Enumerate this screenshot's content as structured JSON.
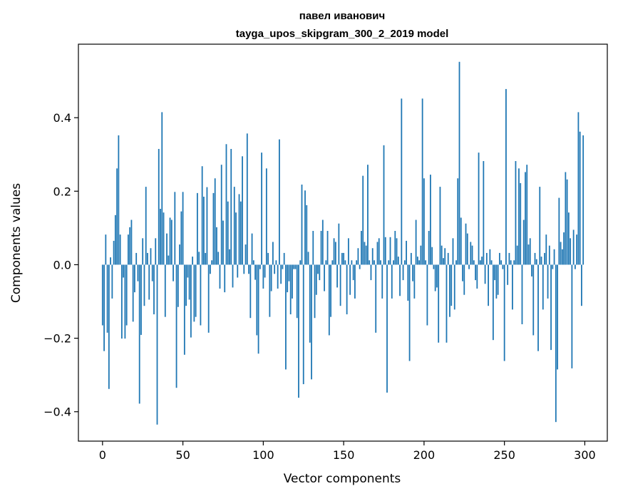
{
  "chart_data": {
    "type": "bar",
    "title_lines": [
      "павел иванович",
      "tayga_upos_skipgram_300_2_2019 model"
    ],
    "xlabel": "Vector components",
    "ylabel": "Components values",
    "xlim": [
      -15,
      314
    ],
    "ylim": [
      -0.48,
      0.6
    ],
    "xticks": [
      0,
      50,
      100,
      150,
      200,
      250,
      300
    ],
    "xtick_labels": [
      "0",
      "50",
      "100",
      "150",
      "200",
      "250",
      "300"
    ],
    "yticks": [
      -0.4,
      -0.2,
      0.0,
      0.2,
      0.4
    ],
    "ytick_labels": [
      "−0.4",
      "−0.2",
      "0.0",
      "0.2",
      "0.4"
    ],
    "grid": false,
    "bar_color": "#1f77b4",
    "values": [
      -0.165,
      -0.235,
      0.082,
      -0.185,
      -0.338,
      0.02,
      -0.092,
      0.065,
      0.135,
      0.262,
      0.352,
      0.082,
      -0.201,
      -0.035,
      -0.201,
      -0.165,
      0.082,
      0.102,
      0.122,
      -0.155,
      -0.075,
      0.032,
      -0.045,
      -0.378,
      -0.191,
      0.072,
      -0.112,
      0.212,
      0.032,
      -0.095,
      0.045,
      -0.045,
      -0.135,
      0.072,
      -0.435,
      0.315,
      0.152,
      0.415,
      0.142,
      -0.142,
      0.085,
      0.025,
      0.128,
      0.122,
      -0.045,
      0.198,
      -0.335,
      -0.115,
      0.055,
      0.145,
      0.198,
      -0.245,
      -0.112,
      -0.035,
      -0.095,
      -0.198,
      0.022,
      -0.155,
      -0.142,
      0.195,
      0.035,
      -0.165,
      0.268,
      0.185,
      0.032,
      0.211,
      -0.185,
      -0.025,
      0.012,
      0.195,
      0.235,
      0.102,
      0.035,
      -0.065,
      0.272,
      0.12,
      -0.075,
      0.328,
      0.172,
      0.042,
      0.315,
      -0.062,
      0.212,
      0.142,
      -0.035,
      0.192,
      0.172,
      0.295,
      -0.025,
      0.055,
      0.357,
      -0.025,
      -0.145,
      0.085,
      0.012,
      -0.041,
      -0.192,
      -0.242,
      -0.012,
      0.305,
      -0.065,
      -0.035,
      0.262,
      0.032,
      -0.142,
      -0.072,
      0.062,
      -0.025,
      0.012,
      -0.065,
      0.341,
      -0.052,
      -0.012,
      0.032,
      -0.285,
      -0.075,
      -0.045,
      -0.135,
      -0.092,
      -0.012,
      -0.012,
      -0.145,
      -0.362,
      0.012,
      0.218,
      -0.325,
      0.202,
      0.162,
      0.035,
      -0.212,
      -0.312,
      0.092,
      -0.145,
      -0.082,
      -0.025,
      -0.042,
      0.092,
      0.122,
      -0.072,
      0.012,
      0.092,
      -0.192,
      -0.142,
      0.012,
      0.072,
      0.062,
      -0.062,
      0.112,
      -0.112,
      0.032,
      0.032,
      0.012,
      -0.135,
      0.072,
      -0.082,
      0.012,
      -0.042,
      -0.092,
      0.012,
      0.045,
      -0.012,
      0.092,
      0.242,
      0.062,
      0.052,
      0.272,
      0.012,
      -0.042,
      0.045,
      0.012,
      -0.185,
      0.062,
      0.072,
      0.012,
      -0.092,
      0.325,
      0.075,
      -0.348,
      0.012,
      0.075,
      -0.092,
      0.012,
      0.092,
      0.072,
      0.022,
      -0.085,
      0.452,
      -0.042,
      0.012,
      0.065,
      -0.098,
      -0.262,
      0.032,
      -0.045,
      -0.092,
      0.122,
      0.022,
      0.012,
      0.052,
      0.452,
      0.235,
      0.012,
      -0.165,
      0.092,
      0.245,
      0.048,
      -0.012,
      -0.072,
      -0.062,
      -0.212,
      0.212,
      0.052,
      0.018,
      0.045,
      -0.212,
      0.032,
      -0.142,
      -0.112,
      0.072,
      -0.122,
      0.012,
      0.235,
      0.552,
      0.128,
      -0.045,
      -0.082,
      0.112,
      0.085,
      -0.012,
      0.062,
      0.052,
      0.012,
      -0.042,
      -0.065,
      0.305,
      0.012,
      0.022,
      0.282,
      -0.052,
      0.032,
      -0.112,
      0.042,
      0.012,
      -0.205,
      -0.042,
      -0.092,
      -0.082,
      0.032,
      0.012,
      -0.012,
      -0.262,
      0.478,
      -0.055,
      0.032,
      0.012,
      -0.122,
      0.012,
      0.282,
      0.052,
      0.262,
      0.222,
      -0.162,
      0.122,
      0.252,
      0.272,
      0.055,
      0.072,
      -0.032,
      -0.192,
      0.032,
      0.015,
      -0.235,
      0.212,
      0.022,
      -0.122,
      0.032,
      0.082,
      -0.092,
      0.052,
      -0.232,
      -0.012,
      0.042,
      -0.428,
      -0.285,
      0.182,
      0.062,
      0.042,
      0.088,
      0.252,
      0.232,
      0.142,
      0.072,
      -0.282,
      0.095,
      -0.012,
      0.082,
      0.415,
      0.362,
      -0.112,
      0.352
    ]
  }
}
